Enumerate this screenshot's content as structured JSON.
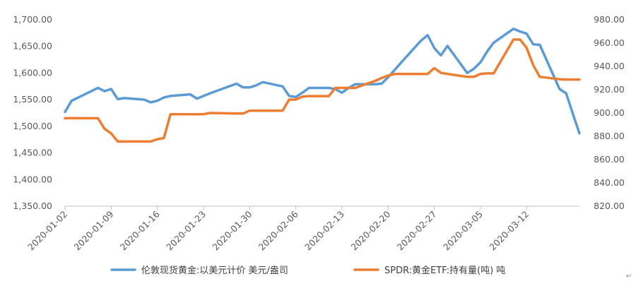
{
  "chart_data": {
    "type": "line",
    "title": "",
    "x_tick_labels": [
      "2020-01-02",
      "2020-01-09",
      "2020-01-16",
      "2020-01-23",
      "2020-01-30",
      "2020-02-06",
      "2020-02-13",
      "2020-02-20",
      "2020-02-27",
      "2020-03-05",
      "2020-03-12"
    ],
    "y_left": {
      "min": 1350,
      "max": 1700,
      "step": 50,
      "tick_labels": [
        "1,350.00",
        "1,400.00",
        "1,450.00",
        "1,500.00",
        "1,550.00",
        "1,600.00",
        "1,650.00",
        "1,700.00"
      ]
    },
    "y_right": {
      "min": 820,
      "max": 980,
      "step": 20,
      "tick_labels": [
        "820.00",
        "840.00",
        "860.00",
        "880.00",
        "900.00",
        "920.00",
        "940.00",
        "960.00",
        "980.00"
      ]
    },
    "series": [
      {
        "name": "伦敦现货黄金:以美元计价 美元/盎司",
        "axis": "left",
        "color": "#5B9BD5",
        "x": [
          0,
          1,
          5,
          6,
          7,
          8,
          9,
          12,
          13,
          14,
          15,
          16,
          19,
          20,
          21,
          22,
          26,
          27,
          28,
          29,
          30,
          33,
          34,
          35,
          36,
          37,
          40,
          41,
          42,
          43,
          44,
          47,
          48,
          49,
          50,
          51,
          54,
          55,
          56,
          57,
          58,
          61,
          62,
          63,
          64,
          65,
          68,
          69,
          70,
          71,
          72,
          75,
          76,
          77,
          78
        ],
        "values": [
          1527,
          1548,
          1572,
          1566,
          1570,
          1551,
          1553,
          1550,
          1545,
          1548,
          1554,
          1557,
          1560,
          1552,
          1557,
          1562,
          1580,
          1573,
          1573,
          1577,
          1583,
          1575,
          1557,
          1555,
          1563,
          1572,
          1572,
          1570,
          1563,
          1572,
          1579,
          1579,
          1580,
          1592,
          1606,
          1620,
          1661,
          1671,
          1647,
          1633,
          1651,
          1600,
          1608,
          1620,
          1640,
          1657,
          1683,
          1678,
          1674,
          1654,
          1653,
          1570,
          1562,
          1524,
          1487
        ]
      },
      {
        "name": "SPDR:黄金ETF:持有量(吨) 吨",
        "axis": "right",
        "color": "#ED7D31",
        "x": [
          0,
          1,
          5,
          6,
          7,
          8,
          9,
          12,
          13,
          14,
          15,
          16,
          19,
          20,
          21,
          22,
          26,
          27,
          28,
          29,
          30,
          33,
          34,
          35,
          36,
          37,
          40,
          41,
          42,
          43,
          44,
          47,
          48,
          49,
          50,
          51,
          54,
          55,
          56,
          57,
          58,
          61,
          62,
          63,
          64,
          65,
          68,
          69,
          70,
          71,
          72,
          75,
          76,
          77,
          78
        ],
        "values": [
          895.5,
          895.5,
          895.5,
          886.5,
          882.5,
          875.5,
          875.5,
          875.5,
          875.5,
          877.5,
          878.5,
          899,
          899,
          899,
          899,
          900,
          899.5,
          899.5,
          902,
          902,
          902,
          902,
          911.5,
          911.5,
          914,
          914.5,
          914.5,
          921.5,
          921.5,
          921.5,
          921.5,
          927.5,
          930,
          932,
          933.5,
          933.5,
          933.5,
          933.5,
          938.5,
          934.5,
          933.5,
          931,
          931,
          933.5,
          934,
          934,
          963,
          963,
          956,
          941,
          931,
          929,
          928.7,
          928.7,
          928.7
        ]
      }
    ],
    "legend": [
      {
        "label": "伦敦现货黄金:以美元计价 美元/盎司",
        "color": "#5B9BD5"
      },
      {
        "label": "SPDR:黄金ETF:持有量(吨) 吨",
        "color": "#ED7D31"
      }
    ],
    "legend_position": "bottom"
  },
  "page_mark": "↵"
}
